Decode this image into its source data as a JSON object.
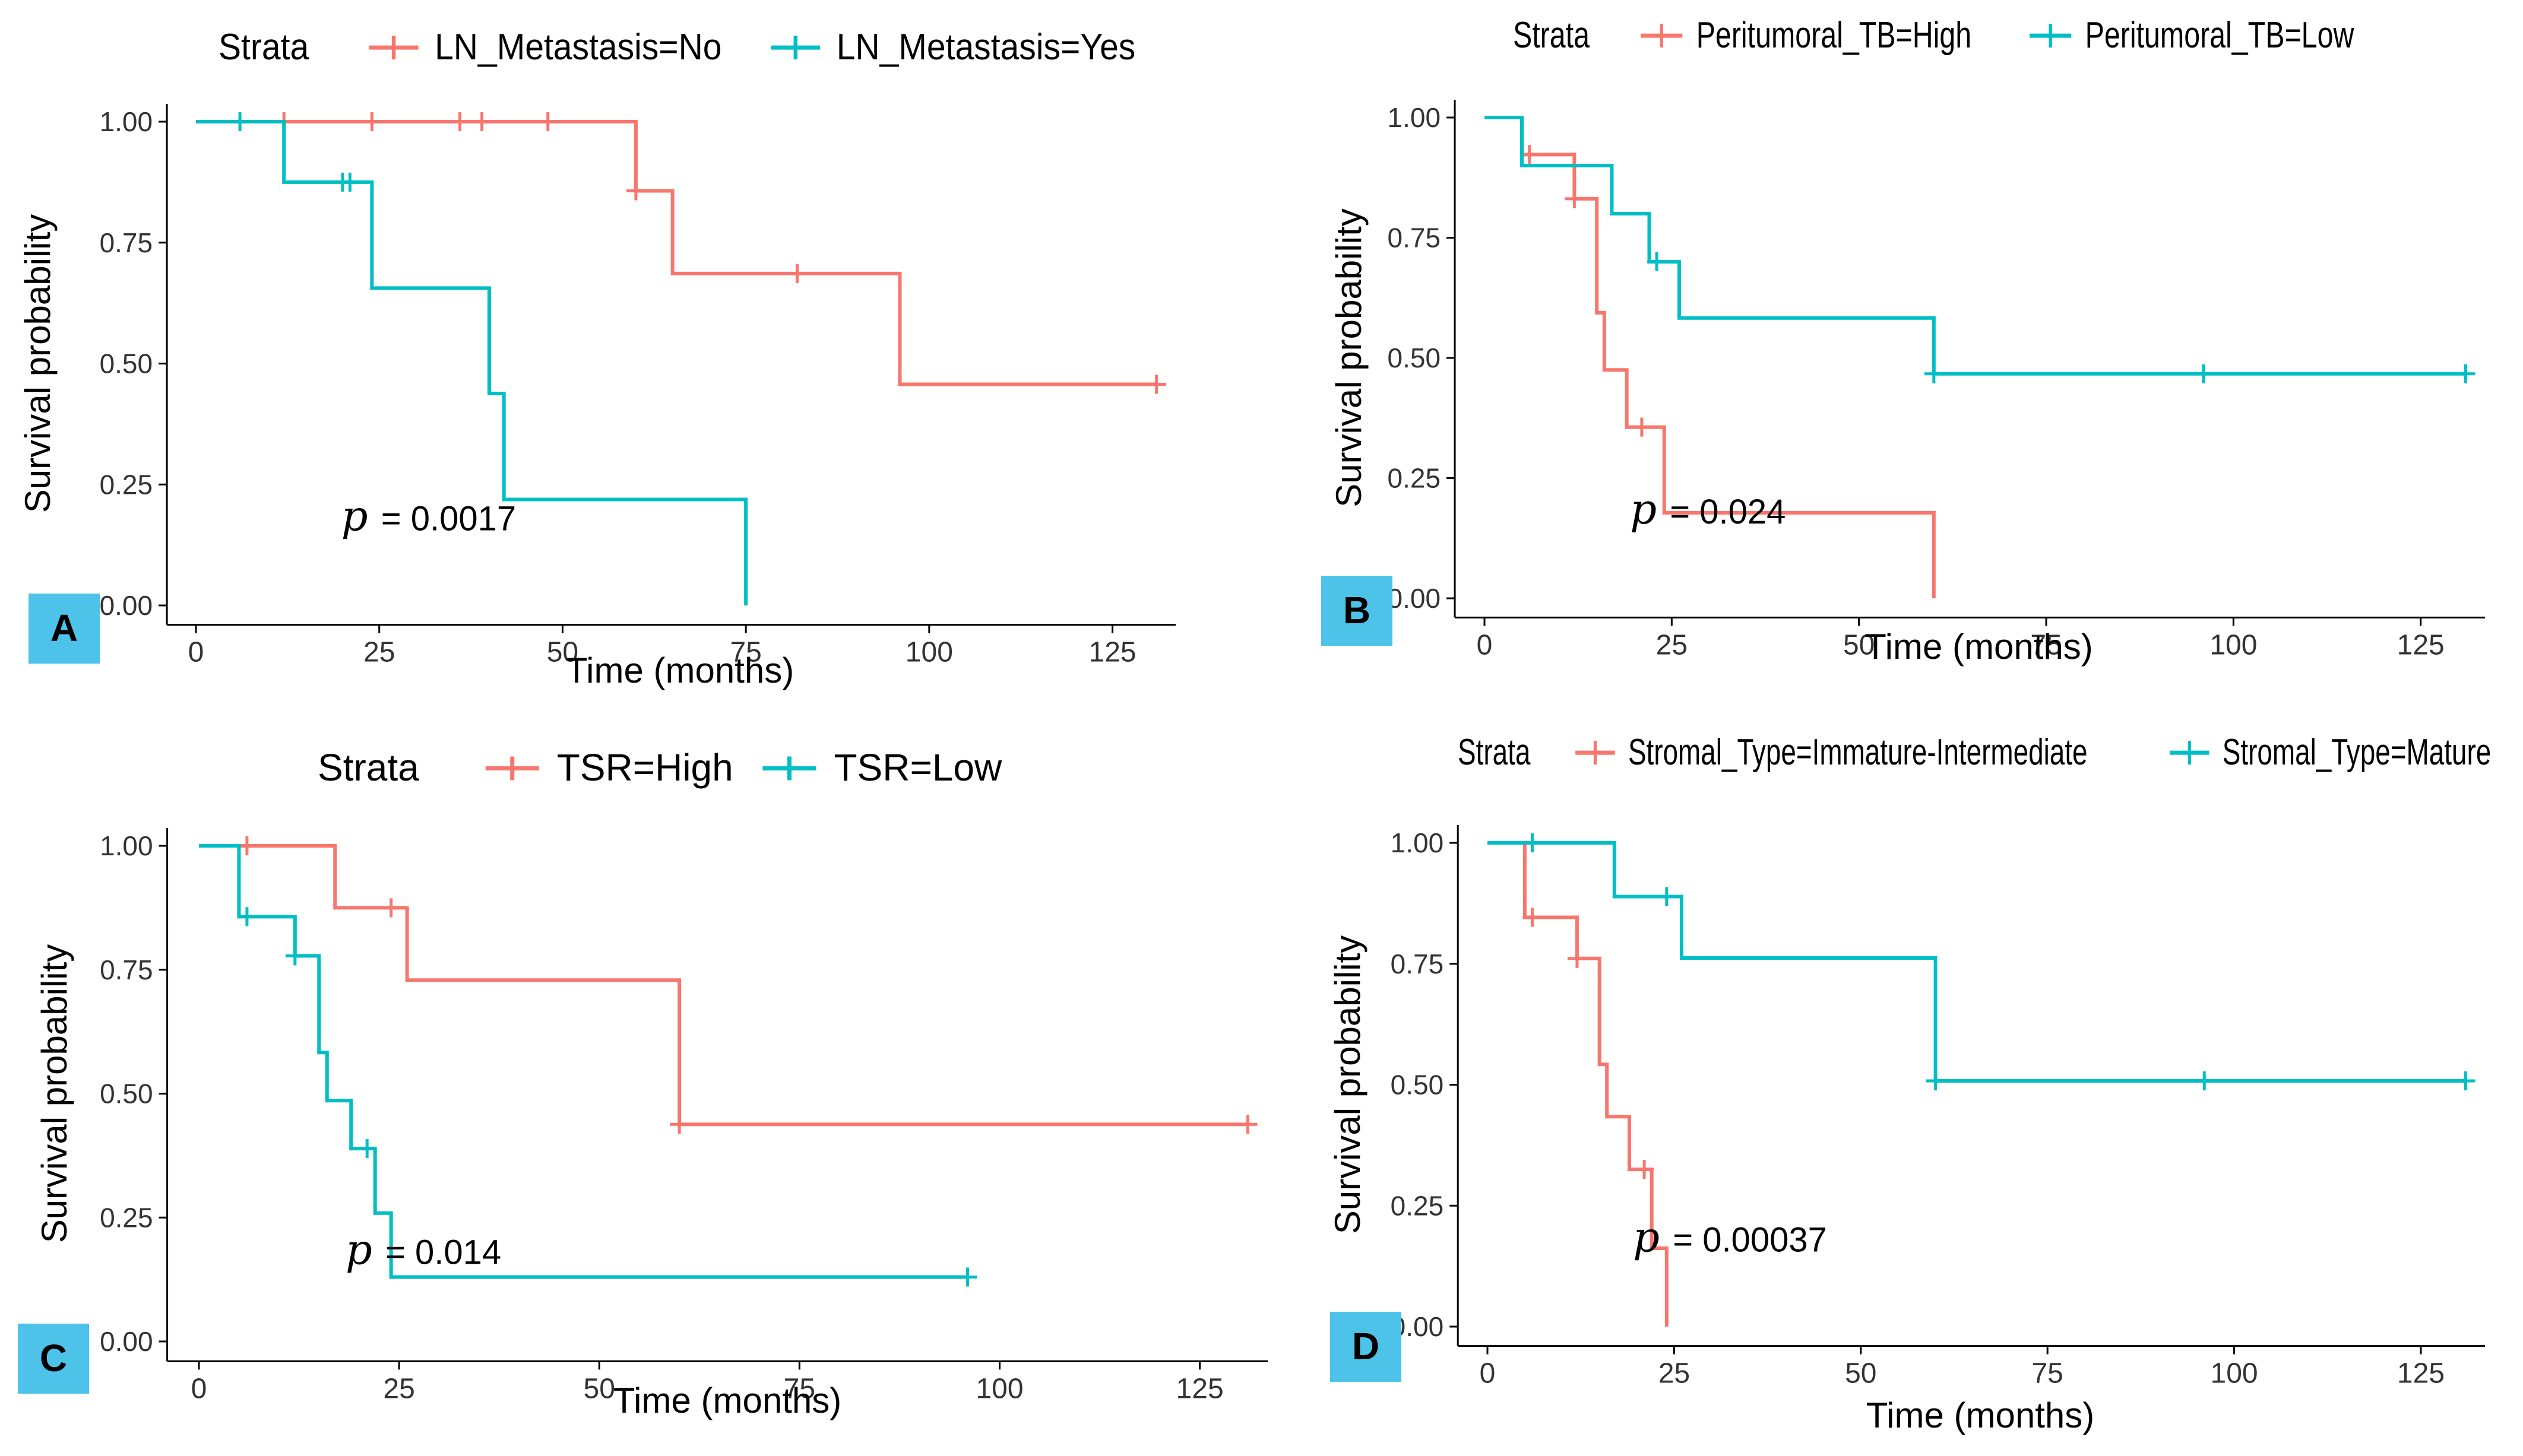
{
  "figure": {
    "colors": {
      "red": "#F8766D",
      "teal": "#00BFC4",
      "badge": "#4DC3EA",
      "axis": "#000000"
    },
    "legend_title": "Strata",
    "x_axis_label": "Time (months)",
    "y_axis_label": "Survival probability"
  },
  "chart_data": [
    {
      "id": "A",
      "type": "line",
      "subtype": "kaplan-meier step",
      "panel_label": "A",
      "title": "",
      "xlabel": "Time (months)",
      "ylabel": "Survival probability",
      "xlim": [
        0,
        132
      ],
      "ylim": [
        0,
        1
      ],
      "xticks": [
        0,
        25,
        50,
        75,
        100,
        125
      ],
      "xtick_labels": [
        "0",
        "25",
        "50",
        "75",
        "100",
        "125"
      ],
      "yticks": [
        0,
        0.25,
        0.5,
        0.75,
        1
      ],
      "ytick_labels": [
        "0.00",
        "0.25",
        "0.50",
        "0.75",
        "1.00"
      ],
      "legend_title": "Strata",
      "legend_position": "top",
      "p_label": "p",
      "p_value_text": "= 0.0017",
      "p_anchor": [
        2,
        0.18
      ],
      "series": [
        {
          "name": "LN_Metastasis=No",
          "color": "#F8766D",
          "steps": [
            [
              0,
              1
            ],
            [
              60,
              0.857
            ],
            [
              65,
              0.686
            ],
            [
              96,
              0.457
            ],
            [
              131,
              0.457
            ]
          ],
          "censor": [
            [
              12,
              1
            ],
            [
              24,
              1
            ],
            [
              36,
              1
            ],
            [
              39,
              1
            ],
            [
              48,
              1
            ],
            [
              60,
              0.857
            ],
            [
              82,
              0.686
            ],
            [
              131,
              0.457
            ]
          ]
        },
        {
          "name": "LN_Metastasis=Yes",
          "color": "#00BFC4",
          "steps": [
            [
              0,
              1
            ],
            [
              12,
              0.875
            ],
            [
              24,
              0.656
            ],
            [
              40,
              0.438
            ],
            [
              42,
              0.219
            ],
            [
              75,
              0
            ]
          ],
          "censor": [
            [
              6,
              1
            ],
            [
              20,
              0.875
            ],
            [
              21,
              0.875
            ]
          ]
        }
      ]
    },
    {
      "id": "B",
      "type": "line",
      "subtype": "kaplan-meier step",
      "panel_label": "B",
      "title": "",
      "xlabel": "Time (months)",
      "ylabel": "Survival probability",
      "xlim": [
        0,
        132
      ],
      "ylim": [
        0,
        1
      ],
      "xticks": [
        0,
        25,
        50,
        75,
        100,
        125
      ],
      "xtick_labels": [
        "0",
        "25",
        "50",
        "75",
        "100",
        "125"
      ],
      "yticks": [
        0,
        0.25,
        0.5,
        0.75,
        1
      ],
      "ytick_labels": [
        "0.00",
        "0.25",
        "0.50",
        "0.75",
        "1.00"
      ],
      "legend_title": "Strata",
      "legend_position": "top",
      "p_label": "p",
      "p_value_text": "= 0.024",
      "p_anchor": [
        2,
        0.18
      ],
      "series": [
        {
          "name": "Peritumoral_TB=High",
          "color": "#F8766D",
          "steps": [
            [
              0,
              1
            ],
            [
              5,
              0.923
            ],
            [
              12,
              0.831
            ],
            [
              15,
              0.594
            ],
            [
              16,
              0.475
            ],
            [
              19,
              0.356
            ],
            [
              24,
              0.178
            ],
            [
              60,
              0
            ]
          ],
          "censor": [
            [
              6,
              0.923
            ],
            [
              12,
              0.831
            ],
            [
              21,
              0.356
            ]
          ]
        },
        {
          "name": "Peritumoral_TB=Low",
          "color": "#00BFC4",
          "steps": [
            [
              0,
              1
            ],
            [
              5,
              0.9
            ],
            [
              17,
              0.8
            ],
            [
              22,
              0.7
            ],
            [
              26,
              0.583
            ],
            [
              60,
              0.467
            ],
            [
              131,
              0.467
            ]
          ],
          "censor": [
            [
              23,
              0.7
            ],
            [
              60,
              0.467
            ],
            [
              96,
              0.467
            ],
            [
              131,
              0.467
            ]
          ]
        }
      ]
    },
    {
      "id": "C",
      "type": "line",
      "subtype": "kaplan-meier step",
      "panel_label": "C",
      "title": "",
      "xlabel": "Time (months)",
      "ylabel": "Survival probability",
      "xlim": [
        0,
        132
      ],
      "ylim": [
        0,
        1
      ],
      "xticks": [
        0,
        25,
        50,
        75,
        100,
        125
      ],
      "xtick_labels": [
        "0",
        "25",
        "50",
        "75",
        "100",
        "125"
      ],
      "yticks": [
        0,
        0.25,
        0.5,
        0.75,
        1
      ],
      "ytick_labels": [
        "0.00",
        "0.25",
        "0.50",
        "0.75",
        "1.00"
      ],
      "legend_title": "Strata",
      "legend_position": "top",
      "p_label": "p",
      "p_value_text": "= 0.014",
      "p_anchor": [
        2,
        0.18
      ],
      "series": [
        {
          "name": "TSR=High",
          "color": "#F8766D",
          "steps": [
            [
              0,
              1
            ],
            [
              17,
              0.875
            ],
            [
              26,
              0.729
            ],
            [
              60,
              0.438
            ],
            [
              131,
              0.438
            ]
          ],
          "censor": [
            [
              6,
              1
            ],
            [
              24,
              0.875
            ],
            [
              60,
              0.438
            ],
            [
              131,
              0.438
            ]
          ]
        },
        {
          "name": "TSR=Low",
          "color": "#00BFC4",
          "steps": [
            [
              0,
              1
            ],
            [
              5,
              0.857
            ],
            [
              12,
              0.778
            ],
            [
              15,
              0.583
            ],
            [
              16,
              0.486
            ],
            [
              19,
              0.389
            ],
            [
              22,
              0.259
            ],
            [
              24,
              0.13
            ],
            [
              96,
              0.13
            ]
          ],
          "censor": [
            [
              6,
              0.857
            ],
            [
              12,
              0.778
            ],
            [
              21,
              0.389
            ],
            [
              96,
              0.13
            ]
          ]
        }
      ]
    },
    {
      "id": "D",
      "type": "line",
      "subtype": "kaplan-meier step",
      "panel_label": "D",
      "title": "",
      "xlabel": "Time (months)",
      "ylabel": "Survival probability",
      "xlim": [
        0,
        132
      ],
      "ylim": [
        0,
        1
      ],
      "xticks": [
        0,
        25,
        50,
        75,
        100,
        125
      ],
      "xtick_labels": [
        "0",
        "25",
        "50",
        "75",
        "100",
        "125"
      ],
      "yticks": [
        0,
        0.25,
        0.5,
        0.75,
        1
      ],
      "ytick_labels": [
        "0.00",
        "0.25",
        "0.50",
        "0.75",
        "1.00"
      ],
      "legend_title": "Strata",
      "legend_position": "top",
      "p_label": "p",
      "p_value_text": "= 0.00037",
      "p_anchor": [
        2,
        0.18
      ],
      "series": [
        {
          "name": "Stromal_Type=Immature-Intermediate",
          "color": "#F8766D",
          "steps": [
            [
              0,
              1
            ],
            [
              5,
              0.846
            ],
            [
              12,
              0.761
            ],
            [
              15,
              0.542
            ],
            [
              16,
              0.434
            ],
            [
              19,
              0.325
            ],
            [
              22,
              0.162
            ],
            [
              24,
              0
            ]
          ],
          "censor": [
            [
              6,
              0.846
            ],
            [
              12,
              0.761
            ],
            [
              21,
              0.325
            ]
          ]
        },
        {
          "name": "Stromal_Type=Mature",
          "color": "#00BFC4",
          "steps": [
            [
              0,
              1
            ],
            [
              17,
              0.889
            ],
            [
              26,
              0.762
            ],
            [
              60,
              0.508
            ],
            [
              131,
              0.508
            ]
          ],
          "censor": [
            [
              6,
              1
            ],
            [
              24,
              0.889
            ],
            [
              60,
              0.508
            ],
            [
              96,
              0.508
            ],
            [
              131,
              0.508
            ]
          ]
        }
      ]
    }
  ]
}
